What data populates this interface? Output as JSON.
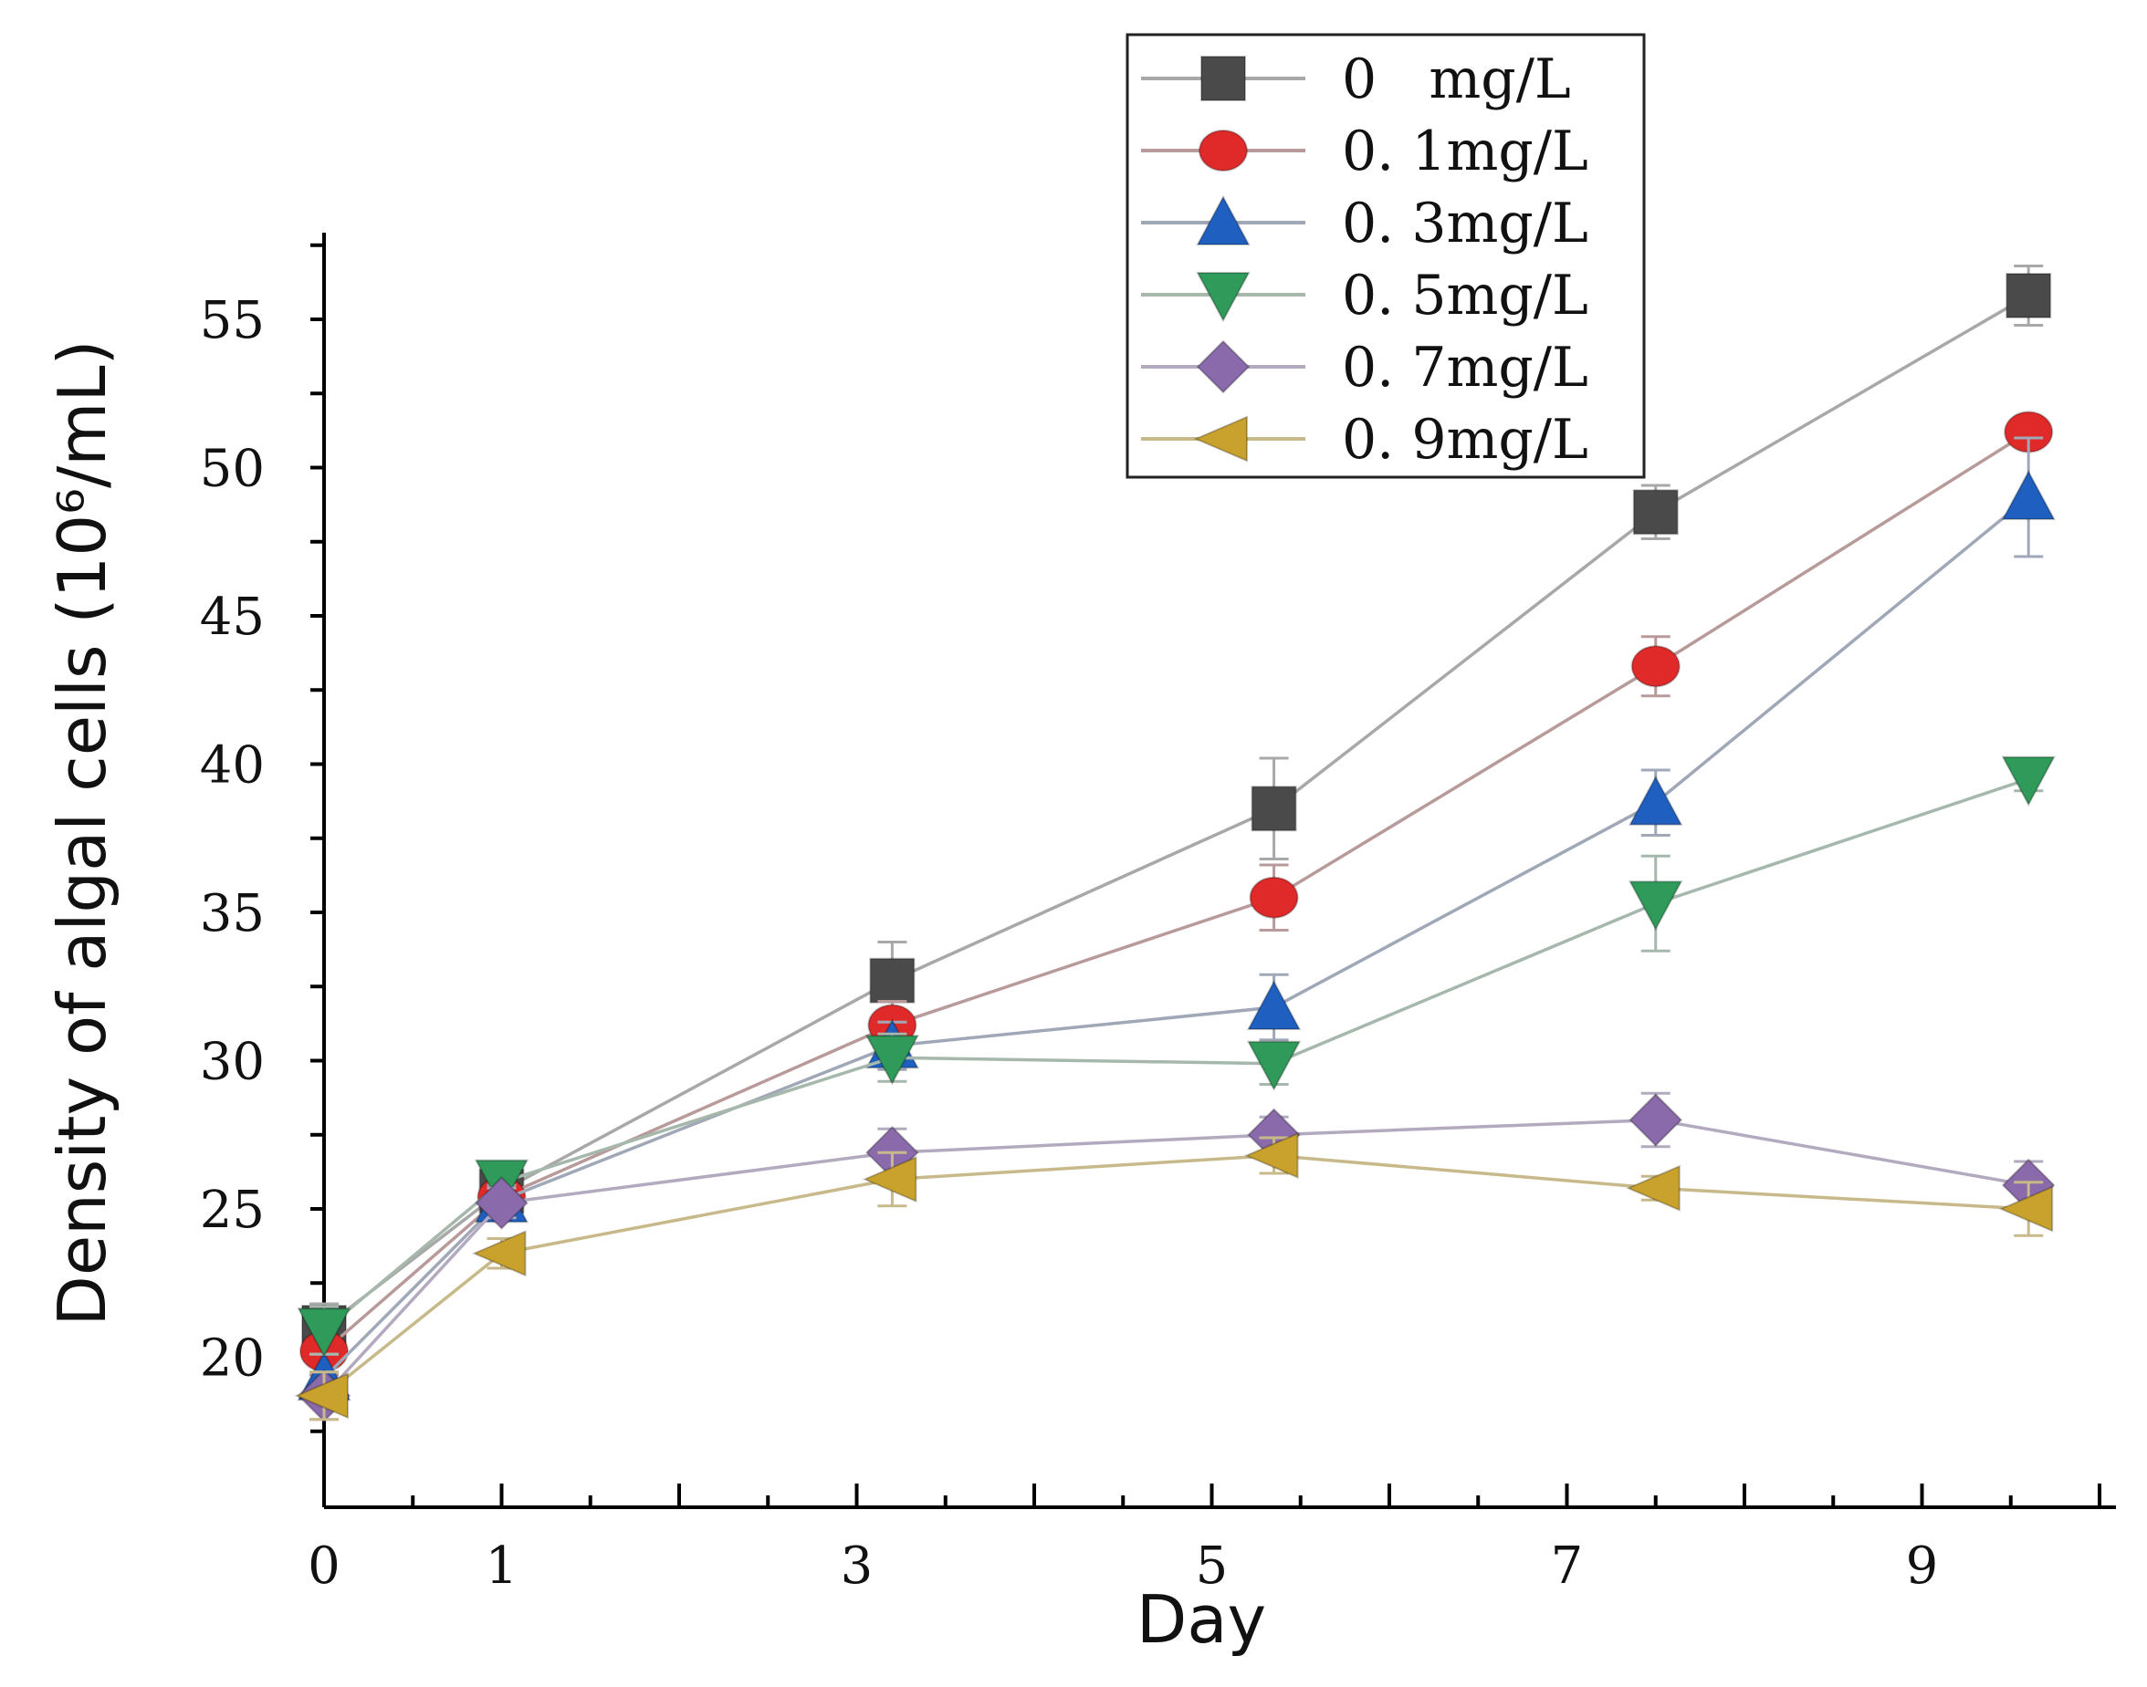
{
  "chart_data": {
    "type": "line",
    "title": "",
    "xlabel": "Day",
    "ylabel": "Density of algal cells  (10⁶/mL)",
    "xlim": [
      0,
      10
    ],
    "ylim": [
      15,
      57.5
    ],
    "xticks": [
      0,
      1,
      3,
      5,
      7,
      9
    ],
    "yticks": [
      20,
      25,
      30,
      35,
      40,
      45,
      50,
      55
    ],
    "legend_position": "top-right",
    "x": [
      0,
      1,
      3.2,
      5.35,
      7.5,
      9.6
    ],
    "series": [
      {
        "name": "0   mg/L",
        "marker": "square",
        "color": "#4a4a4a",
        "line_color": "#a8a8a8",
        "values": [
          21.0,
          25.6,
          32.7,
          38.5,
          48.5,
          55.8
        ],
        "errors": [
          0.8,
          0.6,
          1.3,
          1.7,
          0.9,
          1.0
        ]
      },
      {
        "name": "0. 1mg/L",
        "marker": "circle",
        "color": "#e02a2a",
        "line_color": "#b89a9a",
        "values": [
          20.2,
          25.4,
          31.2,
          35.5,
          43.3,
          51.2
        ],
        "errors": [
          0.8,
          0.5,
          0.8,
          1.1,
          1.0,
          0.4
        ]
      },
      {
        "name": "0. 3mg/L",
        "marker": "triangle-up",
        "color": "#1f5fbf",
        "line_color": "#a0a8b8",
        "values": [
          19.3,
          25.3,
          30.5,
          31.8,
          38.7,
          49.0
        ],
        "errors": [
          0.8,
          0.5,
          0.8,
          1.1,
          1.1,
          2.0
        ]
      },
      {
        "name": "0. 5mg/L",
        "marker": "triangle-down",
        "color": "#2f9a5a",
        "line_color": "#a6b8ac",
        "values": [
          20.9,
          25.9,
          30.1,
          29.9,
          35.3,
          39.5
        ],
        "errors": [
          0.8,
          0.5,
          0.8,
          0.7,
          1.6,
          0.4
        ]
      },
      {
        "name": "0. 7mg/L",
        "marker": "diamond",
        "color": "#8a6aaa",
        "line_color": "#b4aac0",
        "values": [
          18.7,
          25.2,
          26.9,
          27.5,
          28.0,
          25.8
        ],
        "errors": [
          0.8,
          0.5,
          0.8,
          0.6,
          0.9,
          0.8
        ]
      },
      {
        "name": "0. 9mg/L",
        "marker": "triangle-left",
        "color": "#c9a22e",
        "line_color": "#c8b98a",
        "values": [
          18.7,
          23.5,
          26.0,
          26.8,
          25.7,
          25.0
        ],
        "errors": [
          0.8,
          0.5,
          0.9,
          0.6,
          0.4,
          0.9
        ]
      }
    ]
  }
}
